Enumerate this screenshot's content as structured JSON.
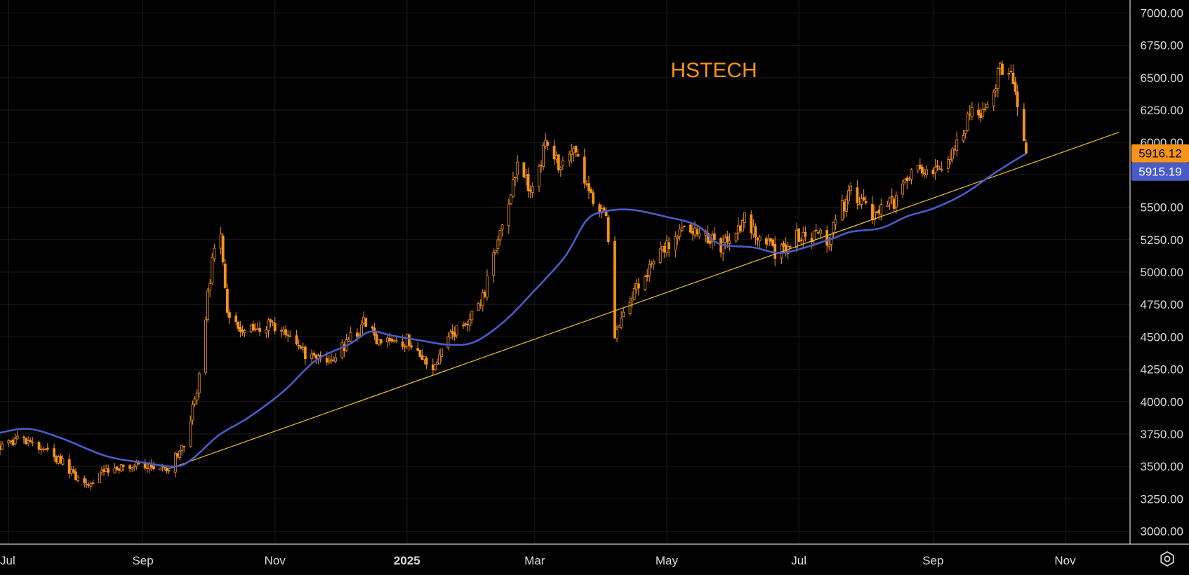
{
  "chart_data": {
    "type": "candlestick",
    "title": "HSTECH",
    "y_range": [
      2900,
      7100
    ],
    "y_ticks": [
      {
        "value": 3000,
        "label": "3000.00"
      },
      {
        "value": 3250,
        "label": "3250.00"
      },
      {
        "value": 3500,
        "label": "3500.00"
      },
      {
        "value": 3750,
        "label": "3750.00"
      },
      {
        "value": 4000,
        "label": "4000.00"
      },
      {
        "value": 4250,
        "label": "4250.00"
      },
      {
        "value": 4500,
        "label": "4500.00"
      },
      {
        "value": 4750,
        "label": "4750.00"
      },
      {
        "value": 5000,
        "label": "5000.00"
      },
      {
        "value": 5250,
        "label": "5250.00"
      },
      {
        "value": 5500,
        "label": "5500.00"
      },
      {
        "value": 5750,
        "label": "5750.00"
      },
      {
        "value": 6000,
        "label": "6000.00"
      },
      {
        "value": 6250,
        "label": "6250.00"
      },
      {
        "value": 6500,
        "label": "6500.00"
      },
      {
        "value": 6750,
        "label": "6750.00"
      },
      {
        "value": 7000,
        "label": "7000.00"
      }
    ],
    "x_range": [
      "2024-06-27",
      "2025-12-01"
    ],
    "x_ticks": [
      {
        "date": "2024-07-01",
        "label": "Jul"
      },
      {
        "date": "2024-09-01",
        "label": "Sep"
      },
      {
        "date": "2024-11-01",
        "label": "Nov"
      },
      {
        "date": "2025-01-01",
        "label": "2025"
      },
      {
        "date": "2025-03-01",
        "label": "Mar"
      },
      {
        "date": "2025-05-01",
        "label": "May"
      },
      {
        "date": "2025-07-01",
        "label": "Jul"
      },
      {
        "date": "2025-09-01",
        "label": "Sep"
      },
      {
        "date": "2025-11-01",
        "label": "Nov"
      }
    ],
    "grid": true,
    "price_anchors": [
      [
        "2024-06-27",
        3650
      ],
      [
        "2024-07-10",
        3720
      ],
      [
        "2024-07-25",
        3550
      ],
      [
        "2024-08-05",
        3360
      ],
      [
        "2024-08-15",
        3450
      ],
      [
        "2024-08-28",
        3500
      ],
      [
        "2024-09-12",
        3480
      ],
      [
        "2024-09-20",
        3650
      ],
      [
        "2024-09-26",
        4100
      ],
      [
        "2024-10-03",
        5100
      ],
      [
        "2024-10-07",
        5250
      ],
      [
        "2024-10-10",
        4700
      ],
      [
        "2024-10-18",
        4550
      ],
      [
        "2024-10-28",
        4600
      ],
      [
        "2024-11-08",
        4550
      ],
      [
        "2024-11-15",
        4350
      ],
      [
        "2024-11-25",
        4300
      ],
      [
        "2024-12-04",
        4450
      ],
      [
        "2024-12-12",
        4600
      ],
      [
        "2024-12-20",
        4450
      ],
      [
        "2025-01-02",
        4480
      ],
      [
        "2025-01-13",
        4230
      ],
      [
        "2025-01-20",
        4480
      ],
      [
        "2025-01-27",
        4600
      ],
      [
        "2025-02-05",
        4800
      ],
      [
        "2025-02-14",
        5350
      ],
      [
        "2025-02-21",
        5800
      ],
      [
        "2025-02-28",
        5600
      ],
      [
        "2025-03-06",
        6000
      ],
      [
        "2025-03-12",
        5850
      ],
      [
        "2025-03-18",
        5950
      ],
      [
        "2025-03-28",
        5550
      ],
      [
        "2025-04-03",
        5450
      ],
      [
        "2025-04-07",
        4500
      ],
      [
        "2025-04-14",
        4800
      ],
      [
        "2025-04-25",
        5050
      ],
      [
        "2025-05-07",
        5350
      ],
      [
        "2025-05-15",
        5300
      ],
      [
        "2025-05-26",
        5200
      ],
      [
        "2025-06-06",
        5400
      ],
      [
        "2025-06-20",
        5150
      ],
      [
        "2025-07-03",
        5300
      ],
      [
        "2025-07-15",
        5260
      ],
      [
        "2025-07-25",
        5650
      ],
      [
        "2025-08-04",
        5450
      ],
      [
        "2025-08-15",
        5550
      ],
      [
        "2025-08-22",
        5800
      ],
      [
        "2025-09-03",
        5750
      ],
      [
        "2025-09-10",
        5900
      ],
      [
        "2025-09-19",
        6250
      ],
      [
        "2025-09-26",
        6250
      ],
      [
        "2025-10-02",
        6600
      ],
      [
        "2025-10-07",
        6550
      ],
      [
        "2025-10-10",
        6300
      ],
      [
        "2025-10-13",
        6050
      ],
      [
        "2025-10-14",
        5916
      ]
    ],
    "moving_average": {
      "color": "#4a5bc9",
      "last_value_label": "5915.19",
      "points": [
        [
          "2024-06-27",
          3760
        ],
        [
          "2024-07-10",
          3790
        ],
        [
          "2024-07-25",
          3720
        ],
        [
          "2024-08-15",
          3580
        ],
        [
          "2024-09-01",
          3530
        ],
        [
          "2024-09-16",
          3500
        ],
        [
          "2024-09-24",
          3560
        ],
        [
          "2024-10-06",
          3740
        ],
        [
          "2024-10-20",
          3880
        ],
        [
          "2024-11-05",
          4080
        ],
        [
          "2024-11-20",
          4320
        ],
        [
          "2024-12-05",
          4440
        ],
        [
          "2024-12-15",
          4540
        ],
        [
          "2024-12-25",
          4510
        ],
        [
          "2025-01-08",
          4470
        ],
        [
          "2025-01-20",
          4440
        ],
        [
          "2025-02-01",
          4460
        ],
        [
          "2025-02-15",
          4620
        ],
        [
          "2025-03-01",
          4860
        ],
        [
          "2025-03-15",
          5120
        ],
        [
          "2025-03-25",
          5400
        ],
        [
          "2025-04-03",
          5470
        ],
        [
          "2025-04-15",
          5480
        ],
        [
          "2025-04-30",
          5430
        ],
        [
          "2025-05-15",
          5360
        ],
        [
          "2025-05-25",
          5220
        ],
        [
          "2025-06-10",
          5190
        ],
        [
          "2025-06-24",
          5150
        ],
        [
          "2025-07-15",
          5250
        ],
        [
          "2025-07-25",
          5310
        ],
        [
          "2025-08-08",
          5340
        ],
        [
          "2025-08-20",
          5430
        ],
        [
          "2025-09-01",
          5490
        ],
        [
          "2025-09-15",
          5600
        ],
        [
          "2025-09-30",
          5770
        ],
        [
          "2025-10-14",
          5915
        ]
      ]
    },
    "trendline": {
      "color": "#e9c22a",
      "from": [
        "2024-09-11",
        3470
      ],
      "to": [
        "2025-11-26",
        6080
      ]
    },
    "last_price": {
      "value": 5916.12,
      "label": "5916.12",
      "color": "#f7931a"
    },
    "candle_color": "#f7931a"
  }
}
